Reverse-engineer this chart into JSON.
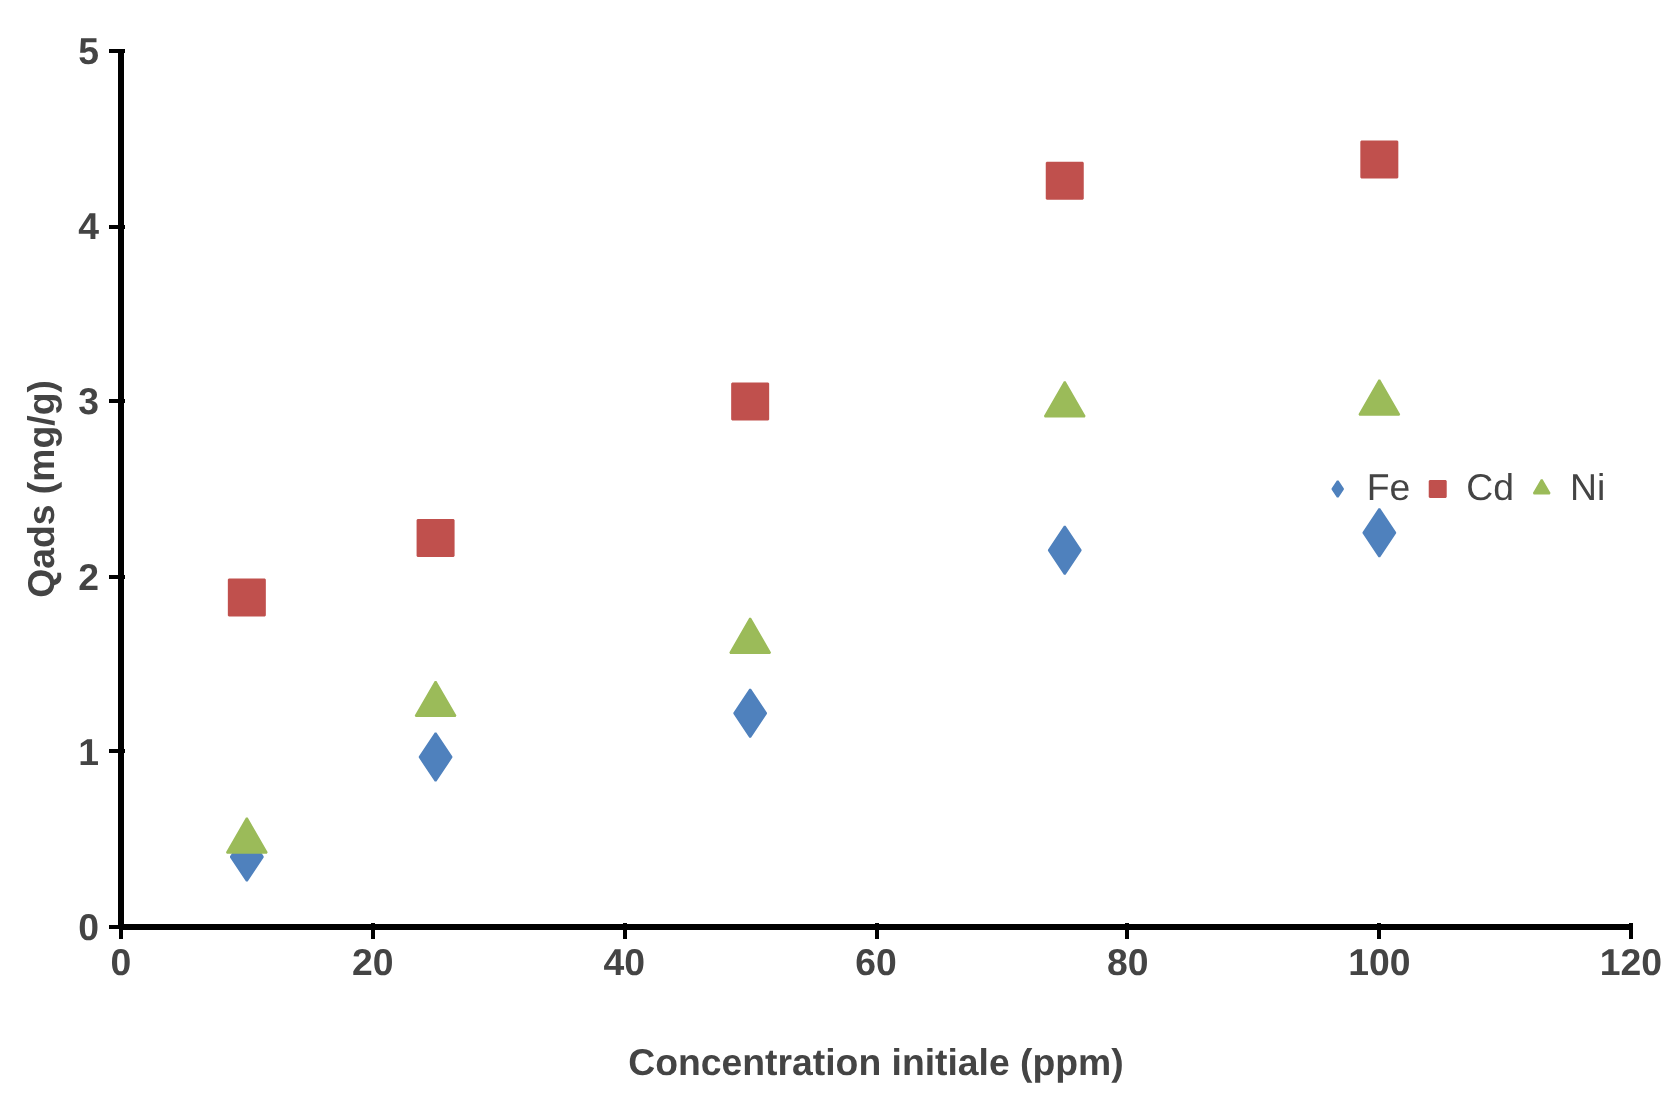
{
  "chart_data": {
    "type": "scatter",
    "xlabel": "Concentration initiale (ppm)",
    "ylabel": "Qads (mg/g)",
    "x": [
      10,
      25,
      50,
      75,
      100
    ],
    "series": [
      {
        "name": "Fe",
        "color": "#4f81bd",
        "marker": "diamond",
        "values": [
          0.4,
          0.97,
          1.22,
          2.15,
          2.25
        ]
      },
      {
        "name": "Cd",
        "color": "#c0504d",
        "marker": "square",
        "values": [
          1.88,
          2.22,
          3.0,
          4.26,
          4.38
        ]
      },
      {
        "name": "Ni",
        "color": "#9bbb59",
        "marker": "triangle",
        "values": [
          0.49,
          1.27,
          1.63,
          2.98,
          2.99
        ]
      }
    ],
    "xlim": [
      0,
      120
    ],
    "xticks": [
      0,
      20,
      40,
      60,
      80,
      100,
      120
    ],
    "ylim": [
      0,
      5
    ],
    "yticks": [
      0,
      1,
      2,
      3,
      4,
      5
    ],
    "grid": false,
    "legend": "right"
  }
}
